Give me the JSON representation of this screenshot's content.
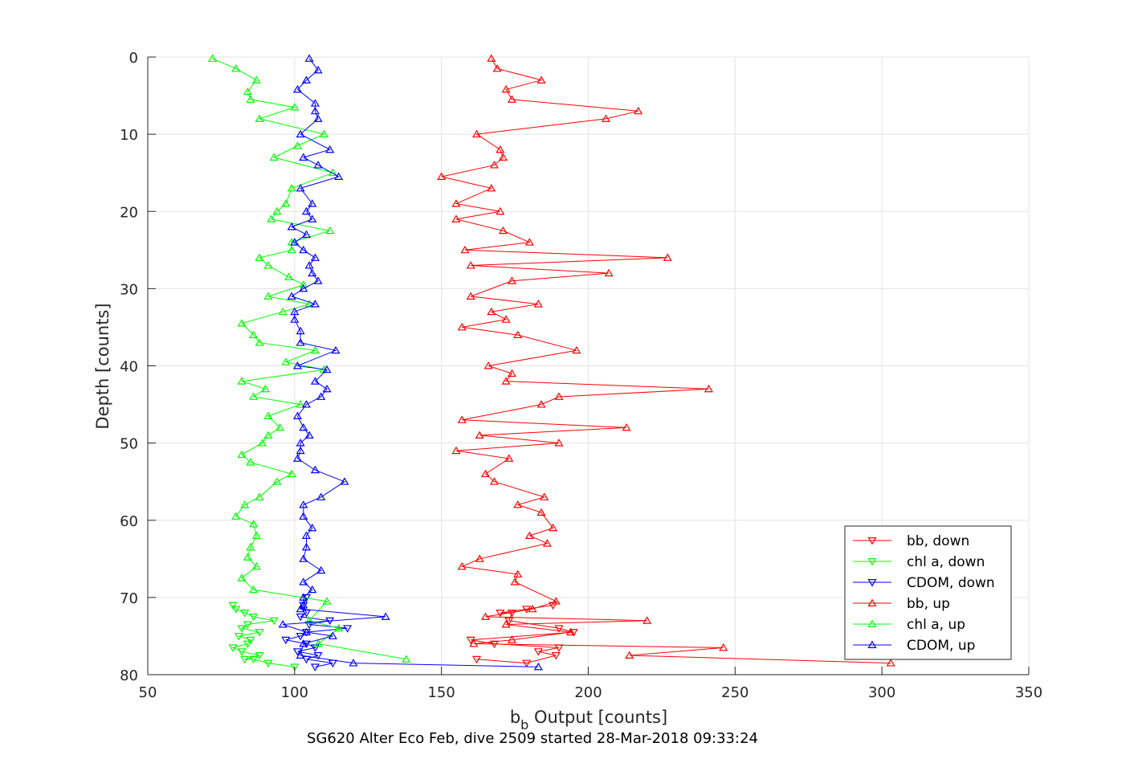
{
  "chart_data": {
    "type": "line",
    "title": "",
    "xlabel_main": "b",
    "xlabel_sub": "b",
    "xlabel_rest": " Output [counts]",
    "ylabel": "Depth [counts]",
    "footer": "SG620 Alter Eco Feb, dive 2509 started 28-Mar-2018 09:33:24",
    "xlim": [
      50,
      350
    ],
    "ylim": [
      0,
      80
    ],
    "y_reversed": true,
    "xticks": [
      50,
      100,
      150,
      200,
      250,
      300,
      350
    ],
    "yticks": [
      0,
      10,
      20,
      30,
      40,
      50,
      60,
      70,
      80
    ],
    "grid": true,
    "legend_position": "bottom-right",
    "series": [
      {
        "name": "bb, down",
        "color": "#ff0000",
        "marker": "triangle-down",
        "points": [
          [
            162,
            78
          ],
          [
            179,
            78.5
          ],
          [
            189,
            77.5
          ],
          [
            183,
            77
          ],
          [
            190,
            76.5
          ],
          [
            168,
            76
          ],
          [
            160,
            75.5
          ],
          [
            195,
            74.5
          ],
          [
            190,
            74
          ],
          [
            173,
            73
          ],
          [
            174,
            72
          ],
          [
            170,
            72
          ],
          [
            179,
            71.5
          ],
          [
            188,
            71
          ]
        ]
      },
      {
        "name": "chl a, down",
        "color": "#00ff00",
        "marker": "triangle-down",
        "points": [
          [
            100,
            79
          ],
          [
            91,
            78.5
          ],
          [
            86,
            78
          ],
          [
            83,
            78
          ],
          [
            88,
            77.5
          ],
          [
            82,
            77
          ],
          [
            79,
            76.5
          ],
          [
            84,
            76
          ],
          [
            85,
            75.5
          ],
          [
            81,
            75
          ],
          [
            88,
            74.5
          ],
          [
            82,
            74
          ],
          [
            84,
            73.5
          ],
          [
            93,
            73
          ],
          [
            86,
            72.5
          ],
          [
            83,
            72
          ],
          [
            80,
            71.5
          ],
          [
            79,
            71
          ]
        ]
      },
      {
        "name": "CDOM, down",
        "color": "#0000ff",
        "marker": "triangle-down",
        "points": [
          [
            107,
            79
          ],
          [
            113,
            78.5
          ],
          [
            104,
            78
          ],
          [
            108,
            77.5
          ],
          [
            101,
            77
          ],
          [
            107,
            76.5
          ],
          [
            104,
            76
          ],
          [
            97,
            75.5
          ],
          [
            102,
            75
          ],
          [
            104,
            74.5
          ],
          [
            118,
            74
          ],
          [
            105,
            73.5
          ],
          [
            112,
            73
          ],
          [
            102,
            72.5
          ],
          [
            104,
            72
          ],
          [
            103,
            71
          ],
          [
            104,
            70
          ]
        ]
      },
      {
        "name": "bb, up",
        "color": "#ff0000",
        "marker": "triangle-up",
        "points": [
          [
            303,
            78.5
          ],
          [
            214,
            77.5
          ],
          [
            246,
            76.5
          ],
          [
            161,
            76
          ],
          [
            174,
            75.5
          ],
          [
            194,
            74.5
          ],
          [
            172,
            73.5
          ],
          [
            220,
            73
          ],
          [
            165,
            72.5
          ],
          [
            181,
            71.5
          ],
          [
            189,
            70.5
          ],
          [
            175,
            68
          ],
          [
            176,
            67
          ],
          [
            157,
            66
          ],
          [
            163,
            65
          ],
          [
            186,
            63
          ],
          [
            180,
            62
          ],
          [
            188,
            61
          ],
          [
            184,
            59
          ],
          [
            176,
            58
          ],
          [
            185,
            57
          ],
          [
            168,
            55
          ],
          [
            165,
            54
          ],
          [
            173,
            52
          ],
          [
            155,
            51
          ],
          [
            190,
            50
          ],
          [
            163,
            49
          ],
          [
            213,
            48
          ],
          [
            157,
            47
          ],
          [
            184,
            45
          ],
          [
            190,
            44
          ],
          [
            241,
            43
          ],
          [
            172,
            42
          ],
          [
            174,
            41
          ],
          [
            166,
            40
          ],
          [
            196,
            38
          ],
          [
            176,
            36
          ],
          [
            157,
            35
          ],
          [
            172,
            34
          ],
          [
            167,
            33
          ],
          [
            183,
            32
          ],
          [
            160,
            31
          ],
          [
            174,
            29
          ],
          [
            207,
            28
          ],
          [
            160,
            27
          ],
          [
            227,
            26
          ],
          [
            158,
            25
          ],
          [
            180,
            24
          ],
          [
            171,
            22.5
          ],
          [
            155,
            21
          ],
          [
            170,
            20
          ],
          [
            155,
            19
          ],
          [
            167,
            17
          ],
          [
            150,
            15.5
          ],
          [
            168,
            14
          ],
          [
            171,
            13
          ],
          [
            170,
            12
          ],
          [
            162,
            10
          ],
          [
            206,
            8
          ],
          [
            217,
            7
          ],
          [
            174,
            5.5
          ],
          [
            172,
            4.2
          ],
          [
            184,
            3
          ],
          [
            169,
            1.5
          ],
          [
            167,
            0.2
          ]
        ]
      },
      {
        "name": "chl a, up",
        "color": "#00ff00",
        "marker": "triangle-up",
        "points": [
          [
            138,
            78
          ],
          [
            108,
            76
          ],
          [
            115,
            74
          ],
          [
            105,
            73
          ],
          [
            111,
            70.5
          ],
          [
            86,
            69
          ],
          [
            82,
            67.5
          ],
          [
            87,
            66
          ],
          [
            84,
            64.8
          ],
          [
            85,
            63.5
          ],
          [
            87,
            62
          ],
          [
            86,
            60.5
          ],
          [
            80,
            59.5
          ],
          [
            83,
            58
          ],
          [
            88,
            57
          ],
          [
            94,
            55
          ],
          [
            99,
            54
          ],
          [
            85,
            52.5
          ],
          [
            82,
            51.5
          ],
          [
            89,
            50
          ],
          [
            91,
            49
          ],
          [
            95,
            48
          ],
          [
            91,
            46.5
          ],
          [
            102,
            45
          ],
          [
            86,
            44
          ],
          [
            90,
            43
          ],
          [
            82,
            42
          ],
          [
            110,
            40.5
          ],
          [
            97,
            39.5
          ],
          [
            107,
            38
          ],
          [
            88,
            37
          ],
          [
            86,
            36
          ],
          [
            82,
            34.5
          ],
          [
            96,
            33
          ],
          [
            105,
            32
          ],
          [
            91,
            31
          ],
          [
            103,
            29.5
          ],
          [
            98,
            28.5
          ],
          [
            91,
            27
          ],
          [
            88,
            26
          ],
          [
            99,
            25
          ],
          [
            99,
            24
          ],
          [
            112,
            22.5
          ],
          [
            92,
            21
          ],
          [
            94,
            20
          ],
          [
            97,
            19
          ],
          [
            99,
            17
          ],
          [
            113,
            15
          ],
          [
            93,
            13
          ],
          [
            101,
            11.5
          ],
          [
            110,
            10
          ],
          [
            88,
            8
          ],
          [
            100,
            6.5
          ],
          [
            85,
            5.5
          ],
          [
            84,
            4.5
          ],
          [
            87,
            3
          ],
          [
            80,
            1.5
          ],
          [
            72,
            0.2
          ]
        ]
      },
      {
        "name": "CDOM, up",
        "color": "#0000ff",
        "marker": "triangle-up",
        "points": [
          [
            183,
            79
          ],
          [
            120,
            78.5
          ],
          [
            102,
            77.5
          ],
          [
            103,
            76
          ],
          [
            113,
            75
          ],
          [
            104,
            74.5
          ],
          [
            96,
            73.5
          ],
          [
            131,
            72.5
          ],
          [
            102,
            71.5
          ],
          [
            103,
            71
          ],
          [
            103,
            70
          ],
          [
            106,
            69
          ],
          [
            103,
            68
          ],
          [
            109,
            66.5
          ],
          [
            103,
            65
          ],
          [
            104,
            63.5
          ],
          [
            104,
            62
          ],
          [
            106,
            61
          ],
          [
            103,
            59.5
          ],
          [
            103,
            58
          ],
          [
            109,
            57
          ],
          [
            117,
            55
          ],
          [
            107,
            53.5
          ],
          [
            101,
            52
          ],
          [
            102,
            51
          ],
          [
            102,
            50
          ],
          [
            105,
            49
          ],
          [
            103,
            48
          ],
          [
            101,
            46.5
          ],
          [
            104,
            45
          ],
          [
            109,
            44
          ],
          [
            111,
            43
          ],
          [
            107,
            42
          ],
          [
            111,
            40.5
          ],
          [
            101,
            40
          ],
          [
            114,
            38
          ],
          [
            102,
            37
          ],
          [
            102,
            35.5
          ],
          [
            100,
            34
          ],
          [
            100,
            33
          ],
          [
            107,
            32
          ],
          [
            99,
            31
          ],
          [
            103,
            30
          ],
          [
            108,
            29
          ],
          [
            106,
            28
          ],
          [
            105,
            27
          ],
          [
            107,
            26
          ],
          [
            103,
            25
          ],
          [
            100,
            24
          ],
          [
            104,
            23
          ],
          [
            99,
            22
          ],
          [
            106,
            21
          ],
          [
            104,
            20
          ],
          [
            106,
            19
          ],
          [
            102,
            17
          ],
          [
            115,
            15.5
          ],
          [
            108,
            14
          ],
          [
            103,
            13
          ],
          [
            112,
            12
          ],
          [
            102,
            10
          ],
          [
            108,
            8
          ],
          [
            107,
            7
          ],
          [
            107,
            6
          ],
          [
            101,
            4.2
          ],
          [
            104,
            3
          ],
          [
            108,
            1.7
          ],
          [
            105,
            0.2
          ]
        ]
      }
    ]
  }
}
